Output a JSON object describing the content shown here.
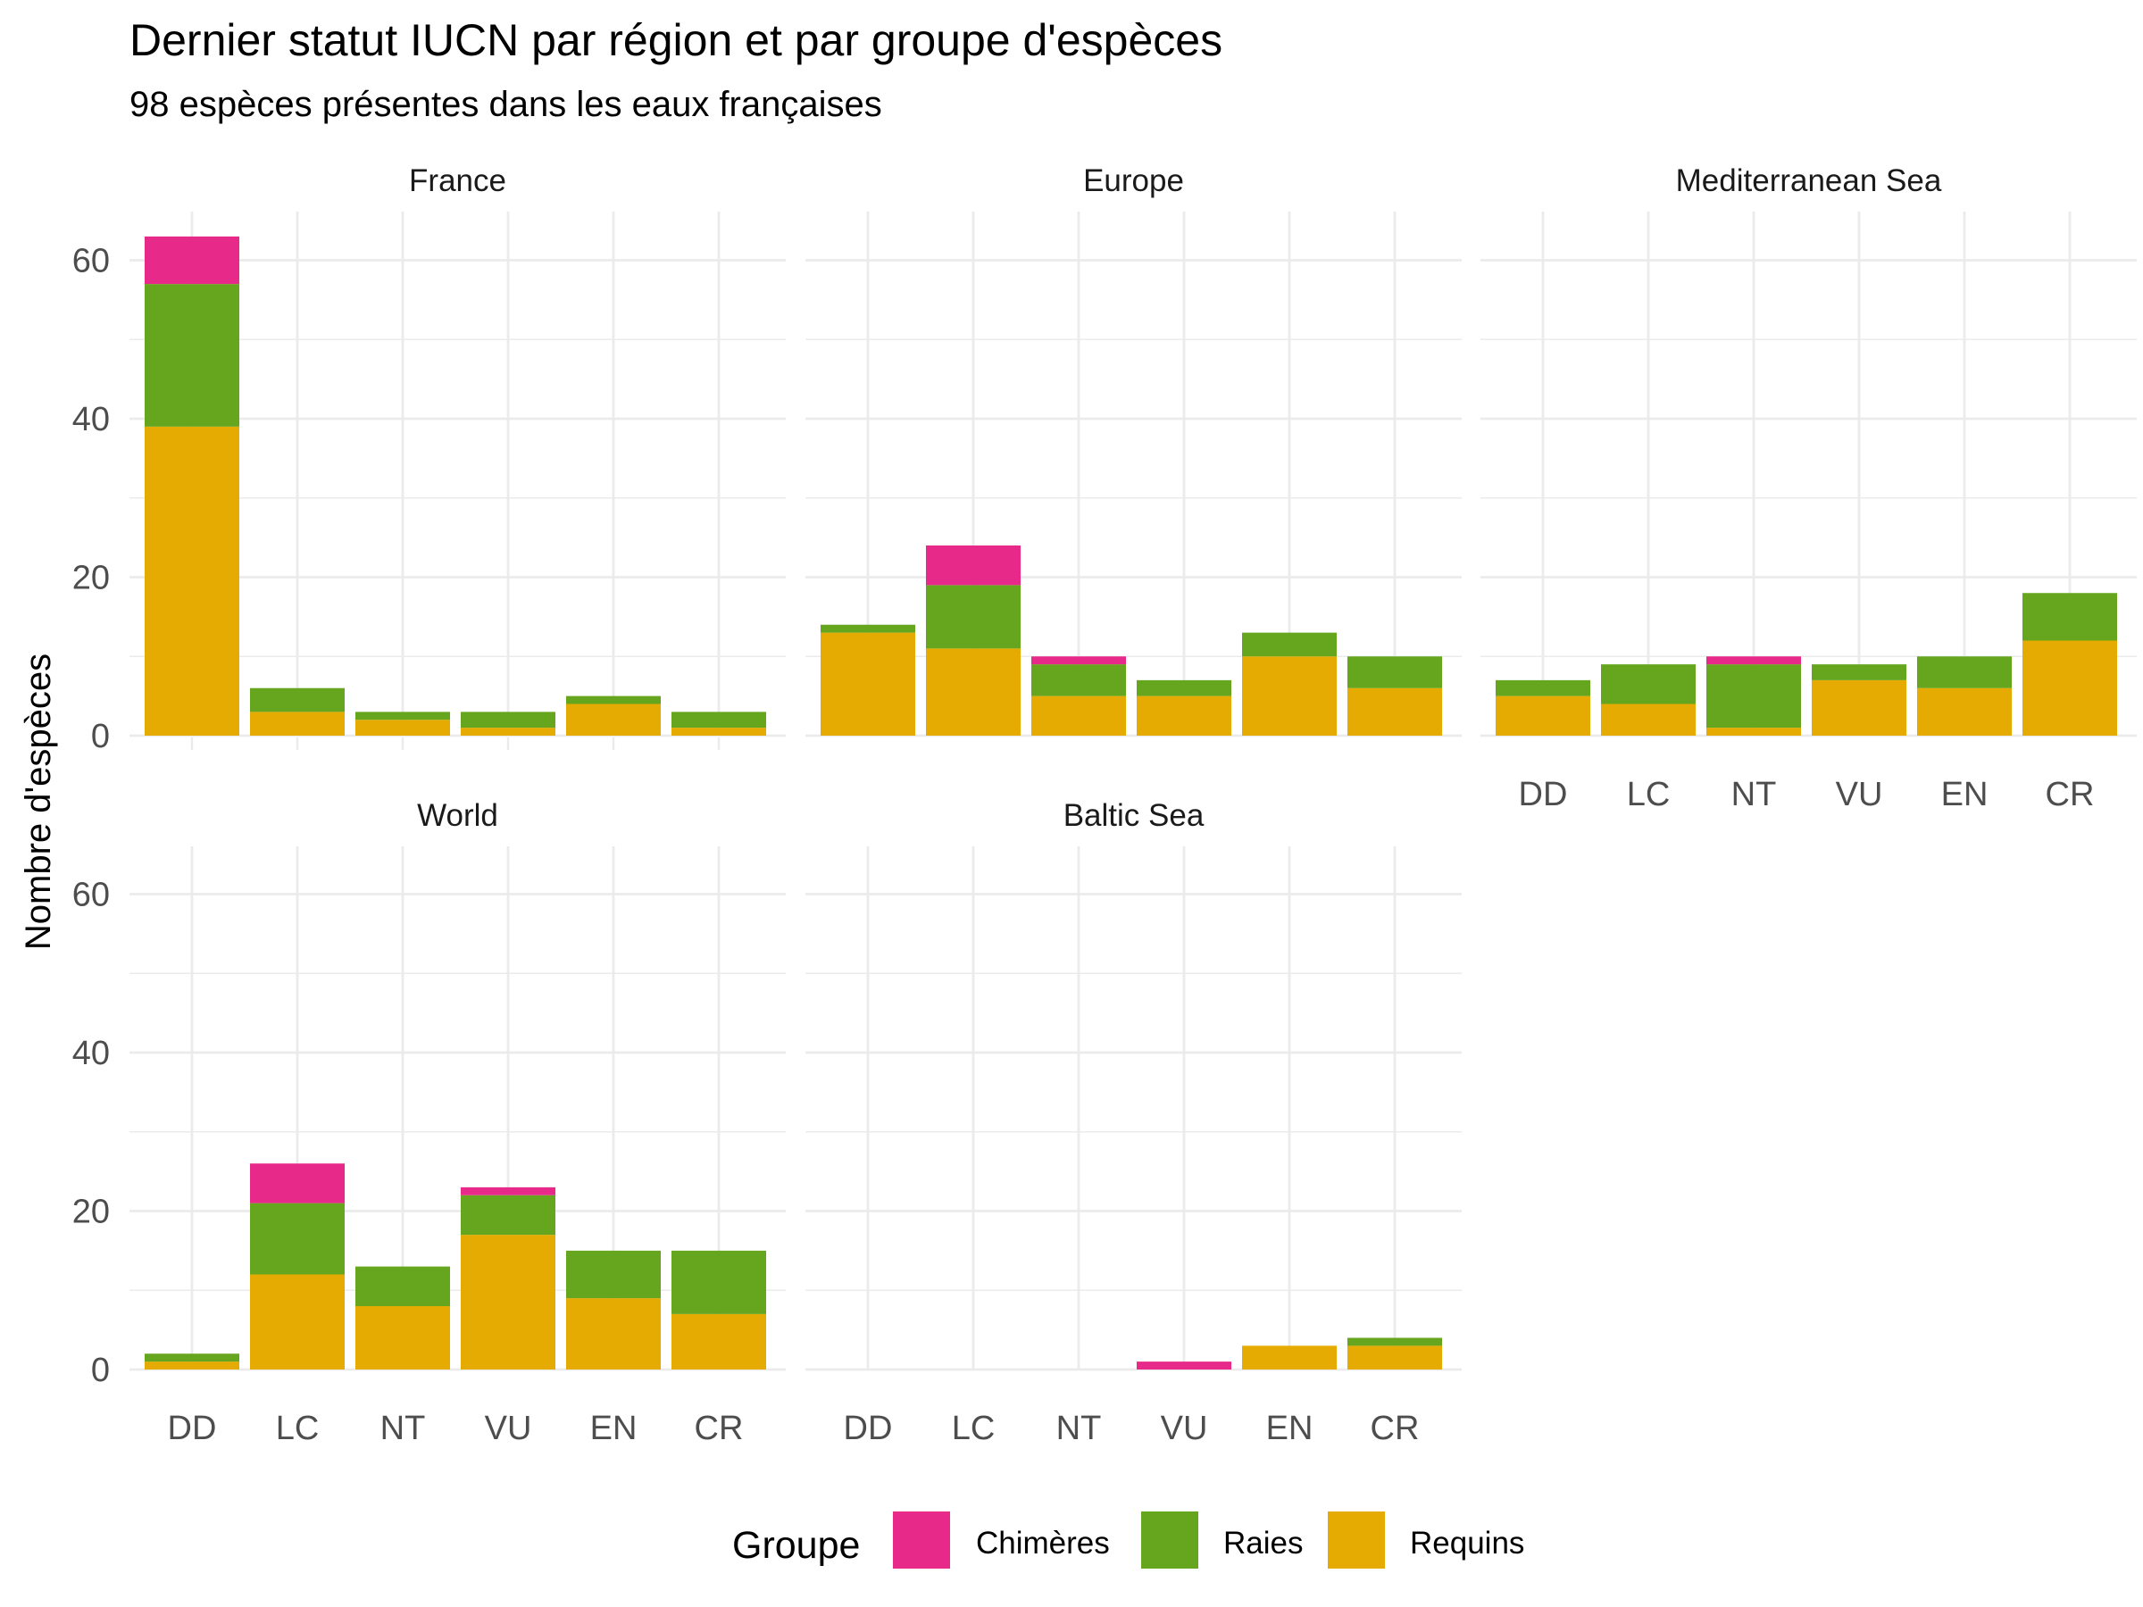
{
  "chart_data": {
    "type": "bar",
    "stacked": true,
    "title": "Dernier statut IUCN par région et par groupe d'espèces",
    "subtitle": "98 espèces présentes dans les eaux françaises",
    "ylabel": "Nombre d'espèces",
    "xlabel": "",
    "ylim": [
      0,
      65
    ],
    "yticks": [
      "0",
      "20",
      "40",
      "60"
    ],
    "categories": [
      "DD",
      "LC",
      "NT",
      "VU",
      "EN",
      "CR"
    ],
    "legend": {
      "title": "Groupe",
      "position": "bottom",
      "items": [
        {
          "name": "Chimères",
          "color": "#E7298A"
        },
        {
          "name": "Raies",
          "color": "#66A61E"
        },
        {
          "name": "Requins",
          "color": "#E6AB02"
        }
      ]
    },
    "grid": true,
    "panels": [
      {
        "name": "France",
        "series": [
          {
            "name": "Requins",
            "values": [
              39,
              3,
              2,
              1,
              4,
              1
            ]
          },
          {
            "name": "Raies",
            "values": [
              18,
              3,
              1,
              2,
              1,
              2
            ]
          },
          {
            "name": "Chimères",
            "values": [
              6,
              0,
              0,
              0,
              0,
              0
            ]
          }
        ]
      },
      {
        "name": "Europe",
        "series": [
          {
            "name": "Requins",
            "values": [
              13,
              11,
              5,
              5,
              10,
              6
            ]
          },
          {
            "name": "Raies",
            "values": [
              1,
              8,
              4,
              2,
              3,
              4
            ]
          },
          {
            "name": "Chimères",
            "values": [
              0,
              5,
              1,
              0,
              0,
              0
            ]
          }
        ]
      },
      {
        "name": "Mediterranean Sea",
        "series": [
          {
            "name": "Requins",
            "values": [
              5,
              4,
              1,
              7,
              6,
              12
            ]
          },
          {
            "name": "Raies",
            "values": [
              2,
              5,
              8,
              2,
              4,
              6
            ]
          },
          {
            "name": "Chimères",
            "values": [
              0,
              0,
              1,
              0,
              0,
              0
            ]
          }
        ]
      },
      {
        "name": "World",
        "series": [
          {
            "name": "Requins",
            "values": [
              1,
              12,
              8,
              17,
              9,
              7
            ]
          },
          {
            "name": "Raies",
            "values": [
              1,
              9,
              5,
              5,
              6,
              8
            ]
          },
          {
            "name": "Chimères",
            "values": [
              0,
              5,
              0,
              1,
              0,
              0
            ]
          }
        ]
      },
      {
        "name": "Baltic Sea",
        "series": [
          {
            "name": "Requins",
            "values": [
              0,
              0,
              0,
              0,
              3,
              3
            ]
          },
          {
            "name": "Raies",
            "values": [
              0,
              0,
              0,
              0,
              0,
              1
            ]
          },
          {
            "name": "Chimères",
            "values": [
              0,
              0,
              0,
              1,
              0,
              0
            ]
          }
        ]
      }
    ]
  }
}
